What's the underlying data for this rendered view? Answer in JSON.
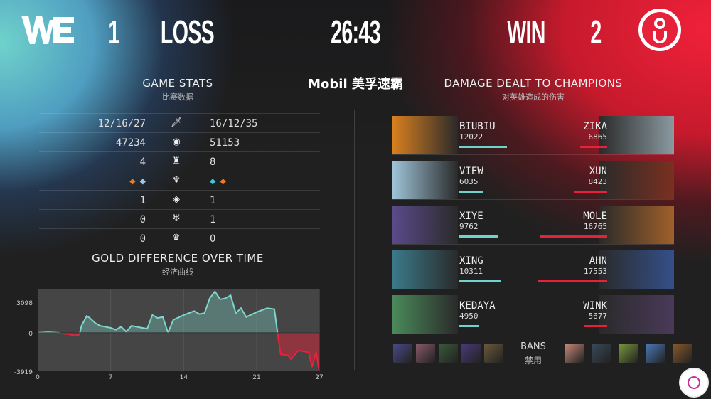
{
  "header": {
    "left_team_logo": "WE",
    "left_score": "1",
    "left_result": "LOSS",
    "timer": "26:43",
    "right_result": "WIN",
    "right_score": "2",
    "right_team_logo": "iG",
    "sponsor": "Mobil 美孚速霸"
  },
  "colors": {
    "left_team": "#6fd3cc",
    "right_team": "#e8213a",
    "background": "#202020"
  },
  "game_stats": {
    "title": "GAME STATS",
    "subtitle": "比赛数据",
    "rows": [
      {
        "icon": "sword-icon",
        "left": "12/16/27",
        "right": "16/12/35"
      },
      {
        "icon": "gold-icon",
        "left": "47234",
        "right": "51153"
      },
      {
        "icon": "tower-icon",
        "left": "4",
        "right": "8"
      },
      {
        "icon": "dragon-icon",
        "left_icons": [
          "infernal-drake-icon",
          "cloud-drake-icon"
        ],
        "right_icons": [
          "hextech-drake-icon",
          "infernal-drake-icon"
        ]
      },
      {
        "icon": "rift-herald-icon",
        "left": "1",
        "right": "1"
      },
      {
        "icon": "baron-icon",
        "left": "0",
        "right": "1"
      },
      {
        "icon": "elder-dragon-icon",
        "left": "0",
        "right": "0"
      }
    ]
  },
  "damage": {
    "title": "DAMAGE DEALT TO CHAMPIONS",
    "subtitle": "对英雄造成的伤害",
    "rows": [
      {
        "left": {
          "player": "BIUBIU",
          "damage": 12022
        },
        "right": {
          "player": "ZIKA",
          "damage": 6865
        }
      },
      {
        "left": {
          "player": "VIEW",
          "damage": 6035
        },
        "right": {
          "player": "XUN",
          "damage": 8423
        }
      },
      {
        "left": {
          "player": "XIYE",
          "damage": 9762
        },
        "right": {
          "player": "MOLE",
          "damage": 16765
        }
      },
      {
        "left": {
          "player": "XING",
          "damage": 10311
        },
        "right": {
          "player": "AHN",
          "damage": 17553
        }
      },
      {
        "left": {
          "player": "KEDAYA",
          "damage": 4950
        },
        "right": {
          "player": "WINK",
          "damage": 5677
        }
      }
    ]
  },
  "bans": {
    "label": "BANS",
    "sublabel": "禁用"
  },
  "chart_data": {
    "type": "area",
    "title": "GOLD DIFFERENCE OVER TIME",
    "subtitle": "经济曲线",
    "xticks": [
      "0",
      "7",
      "14",
      "21",
      "27"
    ],
    "yticks": [
      "3098",
      "0",
      "-3919"
    ],
    "xlim": [
      0,
      27
    ],
    "ylim": [
      -3919,
      4400
    ],
    "positive_color": "#7fd6cc",
    "negative_color": "#e8213a",
    "x": [
      0,
      1,
      2,
      2.5,
      3,
      3.5,
      4,
      4.2,
      4.7,
      5,
      5.5,
      6,
      7,
      7.5,
      8,
      8.5,
      9,
      10,
      10.5,
      11,
      11.5,
      12,
      12.5,
      13,
      14,
      15,
      15.5,
      16,
      16.5,
      17,
      17.5,
      18,
      18.5,
      19,
      19.5,
      20,
      21,
      22,
      22.7,
      23,
      23.3,
      24,
      24.3,
      25,
      26,
      26.3,
      26.7,
      27
    ],
    "y": [
      0,
      50,
      0,
      -100,
      -150,
      -300,
      -200,
      700,
      1700,
      1500,
      1000,
      700,
      500,
      300,
      600,
      100,
      700,
      500,
      400,
      1800,
      1500,
      1600,
      0,
      1300,
      1800,
      2200,
      1900,
      2000,
      3500,
      4200,
      3400,
      3500,
      3800,
      2000,
      2500,
      1600,
      2100,
      2500,
      2400,
      0,
      -2200,
      -2300,
      -2700,
      -1800,
      -2000,
      -3500,
      -2000,
      -3919
    ]
  }
}
